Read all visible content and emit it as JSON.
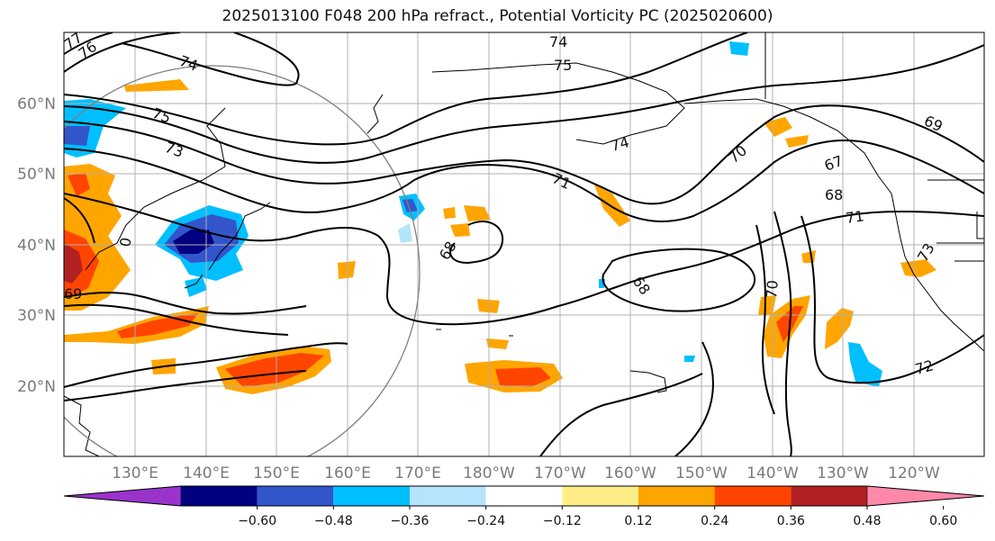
{
  "title": "2025013100 F048 200 hPa refract., Potential Vorticity PC (2025020600)",
  "map": {
    "lat_labels": [
      "60°N",
      "50°N",
      "40°N",
      "30°N",
      "20°N"
    ],
    "lon_labels": [
      "130°E",
      "140°E",
      "150°E",
      "160°E",
      "170°E",
      "180°W",
      "170°W",
      "160°W",
      "150°W",
      "140°W",
      "130°W",
      "120°W"
    ],
    "contour_labels": [
      "77",
      "76",
      "74",
      "75",
      "73",
      "74",
      "75",
      "74",
      "71",
      "70",
      "68",
      "69",
      "67",
      "68",
      "71",
      "68",
      "70",
      "72",
      "73",
      "69",
      "0"
    ]
  },
  "colorbar": {
    "colors": [
      "#9933cc",
      "#000080",
      "#3355cc",
      "#00bfff",
      "#b3e5fc",
      "#ffffff",
      "#ffee88",
      "#ffa500",
      "#ff4500",
      "#b22222",
      "#ff88aa"
    ],
    "tick_labels": [
      "−0.60",
      "−0.48",
      "−0.36",
      "−0.24",
      "−0.12",
      "0.12",
      "0.24",
      "0.36",
      "0.48",
      "0.60"
    ]
  }
}
